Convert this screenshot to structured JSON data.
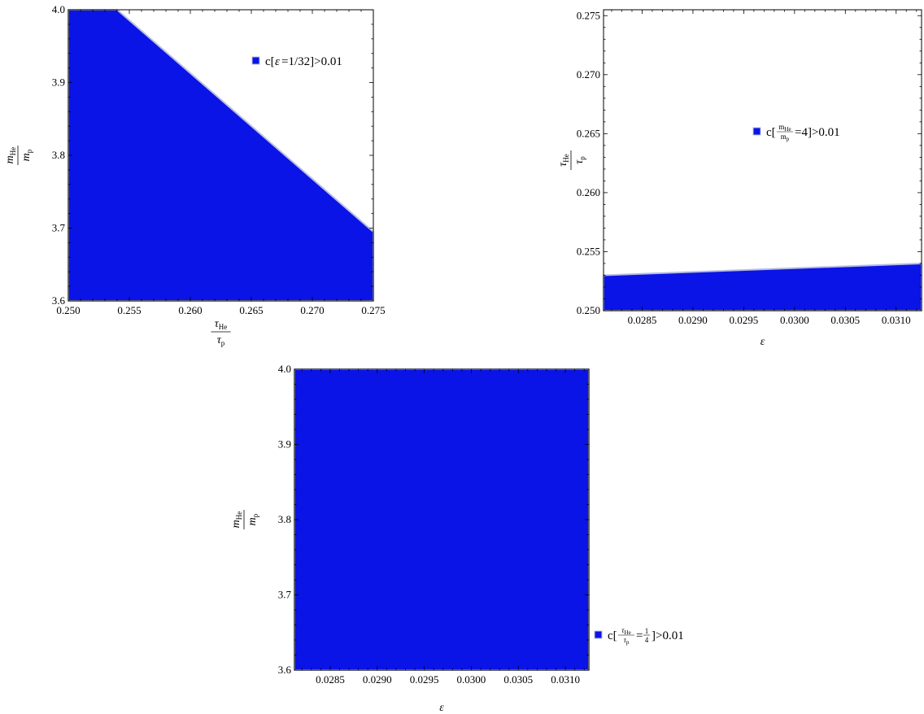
{
  "colors": {
    "region_fill": "#0a14e6",
    "region_edge": "#b8bce0",
    "frame": "#000000"
  },
  "chart_data": [
    {
      "type": "area",
      "panel": "top-left",
      "xlabel": {
        "top_sym": "τ",
        "top_sub": "He",
        "bottom_sym": "τ",
        "bottom_sub": "p"
      },
      "ylabel": {
        "top_sym": "m",
        "top_sub": "He",
        "bottom_sym": "m",
        "bottom_sub": "p"
      },
      "xlim": [
        0.25,
        0.275
      ],
      "ylim": [
        3.6,
        4.0
      ],
      "xticks": [
        "0.250",
        "0.255",
        "0.260",
        "0.265",
        "0.270",
        "0.275"
      ],
      "yticks": [
        "3.6",
        "3.7",
        "3.8",
        "3.9",
        "4.0"
      ],
      "region": [
        [
          0.25,
          3.6
        ],
        [
          0.25,
          4.0
        ],
        [
          0.254,
          4.0
        ],
        [
          0.275,
          3.695
        ],
        [
          0.275,
          3.6
        ]
      ],
      "legend": {
        "text_pre": "c[",
        "text_sym": "ε",
        "text_post": "=1/32]>0.01",
        "position": "top-right"
      }
    },
    {
      "type": "area",
      "panel": "top-right",
      "xlabel": {
        "sym": "ε"
      },
      "ylabel": {
        "top_sym": "τ",
        "top_sub": "He",
        "bottom_sym": "τ",
        "bottom_sub": "p"
      },
      "xlim": [
        0.02812,
        0.03125
      ],
      "ylim": [
        0.25,
        0.2755
      ],
      "xticks": [
        "0.0285",
        "0.0290",
        "0.0295",
        "0.0300",
        "0.0305",
        "0.0310"
      ],
      "yticks": [
        "0.250",
        "0.255",
        "0.260",
        "0.265",
        "0.270",
        "0.275"
      ],
      "region": [
        [
          0.02812,
          0.25
        ],
        [
          0.02812,
          0.253
        ],
        [
          0.03125,
          0.254
        ],
        [
          0.03125,
          0.25
        ]
      ],
      "legend": {
        "text_pre": "c[",
        "frac_num": "m",
        "frac_num_sub": "He",
        "frac_den": "m",
        "frac_den_sub": "p",
        "text_post": "=4]>0.01",
        "position": "middle-right"
      }
    },
    {
      "type": "area",
      "panel": "bottom",
      "xlabel": {
        "sym": "ε"
      },
      "ylabel": {
        "top_sym": "m",
        "top_sub": "He",
        "bottom_sym": "m",
        "bottom_sub": "p"
      },
      "xlim": [
        0.02812,
        0.03125
      ],
      "ylim": [
        3.6,
        4.0
      ],
      "xticks": [
        "0.0285",
        "0.0290",
        "0.0295",
        "0.0300",
        "0.0305",
        "0.0310"
      ],
      "yticks": [
        "3.6",
        "3.7",
        "3.8",
        "3.9",
        "4.0"
      ],
      "region": [
        [
          0.02812,
          3.6
        ],
        [
          0.02812,
          4.0
        ],
        [
          0.03125,
          4.0
        ],
        [
          0.03125,
          3.6
        ]
      ],
      "legend": {
        "text_pre": "c[",
        "frac_num": "τ",
        "frac_num_sub": "He",
        "frac_den": "τ",
        "frac_den_sub": "p",
        "eq": "=",
        "val_num": "1",
        "val_den": "4",
        "text_post": "]>0.01",
        "position": "outside-right"
      }
    }
  ]
}
